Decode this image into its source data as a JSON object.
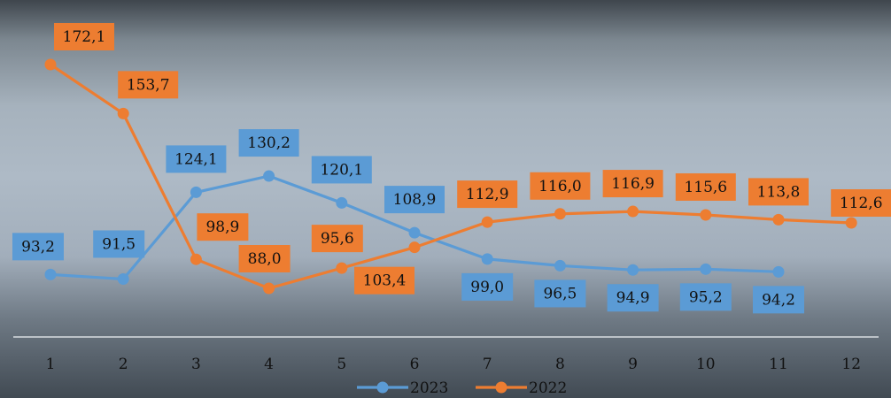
{
  "chart_data": {
    "type": "line",
    "categories": [
      "1",
      "2",
      "3",
      "4",
      "5",
      "6",
      "7",
      "8",
      "9",
      "10",
      "11",
      "12"
    ],
    "series": [
      {
        "name": "2023",
        "color": "#5b9bd5",
        "values": [
          93.2,
          91.5,
          124.1,
          130.2,
          120.1,
          108.9,
          99.0,
          96.5,
          94.9,
          95.2,
          94.2,
          null
        ],
        "labels": [
          "93,2",
          "91,5",
          "124,1",
          "130,2",
          "120,1",
          "108,9",
          "99,0",
          "96,5",
          "94,9",
          "95,2",
          "94,2",
          ""
        ]
      },
      {
        "name": "2022",
        "color": "#ed7d31",
        "values": [
          172.1,
          153.7,
          98.9,
          88.0,
          95.6,
          103.4,
          112.9,
          116.0,
          116.9,
          115.6,
          113.8,
          112.6
        ],
        "labels": [
          "172,1",
          "153,7",
          "98,9",
          "88,0",
          "95,6",
          "103,4",
          "112,9",
          "116,0",
          "116,9",
          "115,6",
          "113,8",
          "112,6"
        ]
      }
    ],
    "title": "",
    "xlabel": "",
    "ylabel": "",
    "legend_position": "bottom",
    "grid": false
  }
}
